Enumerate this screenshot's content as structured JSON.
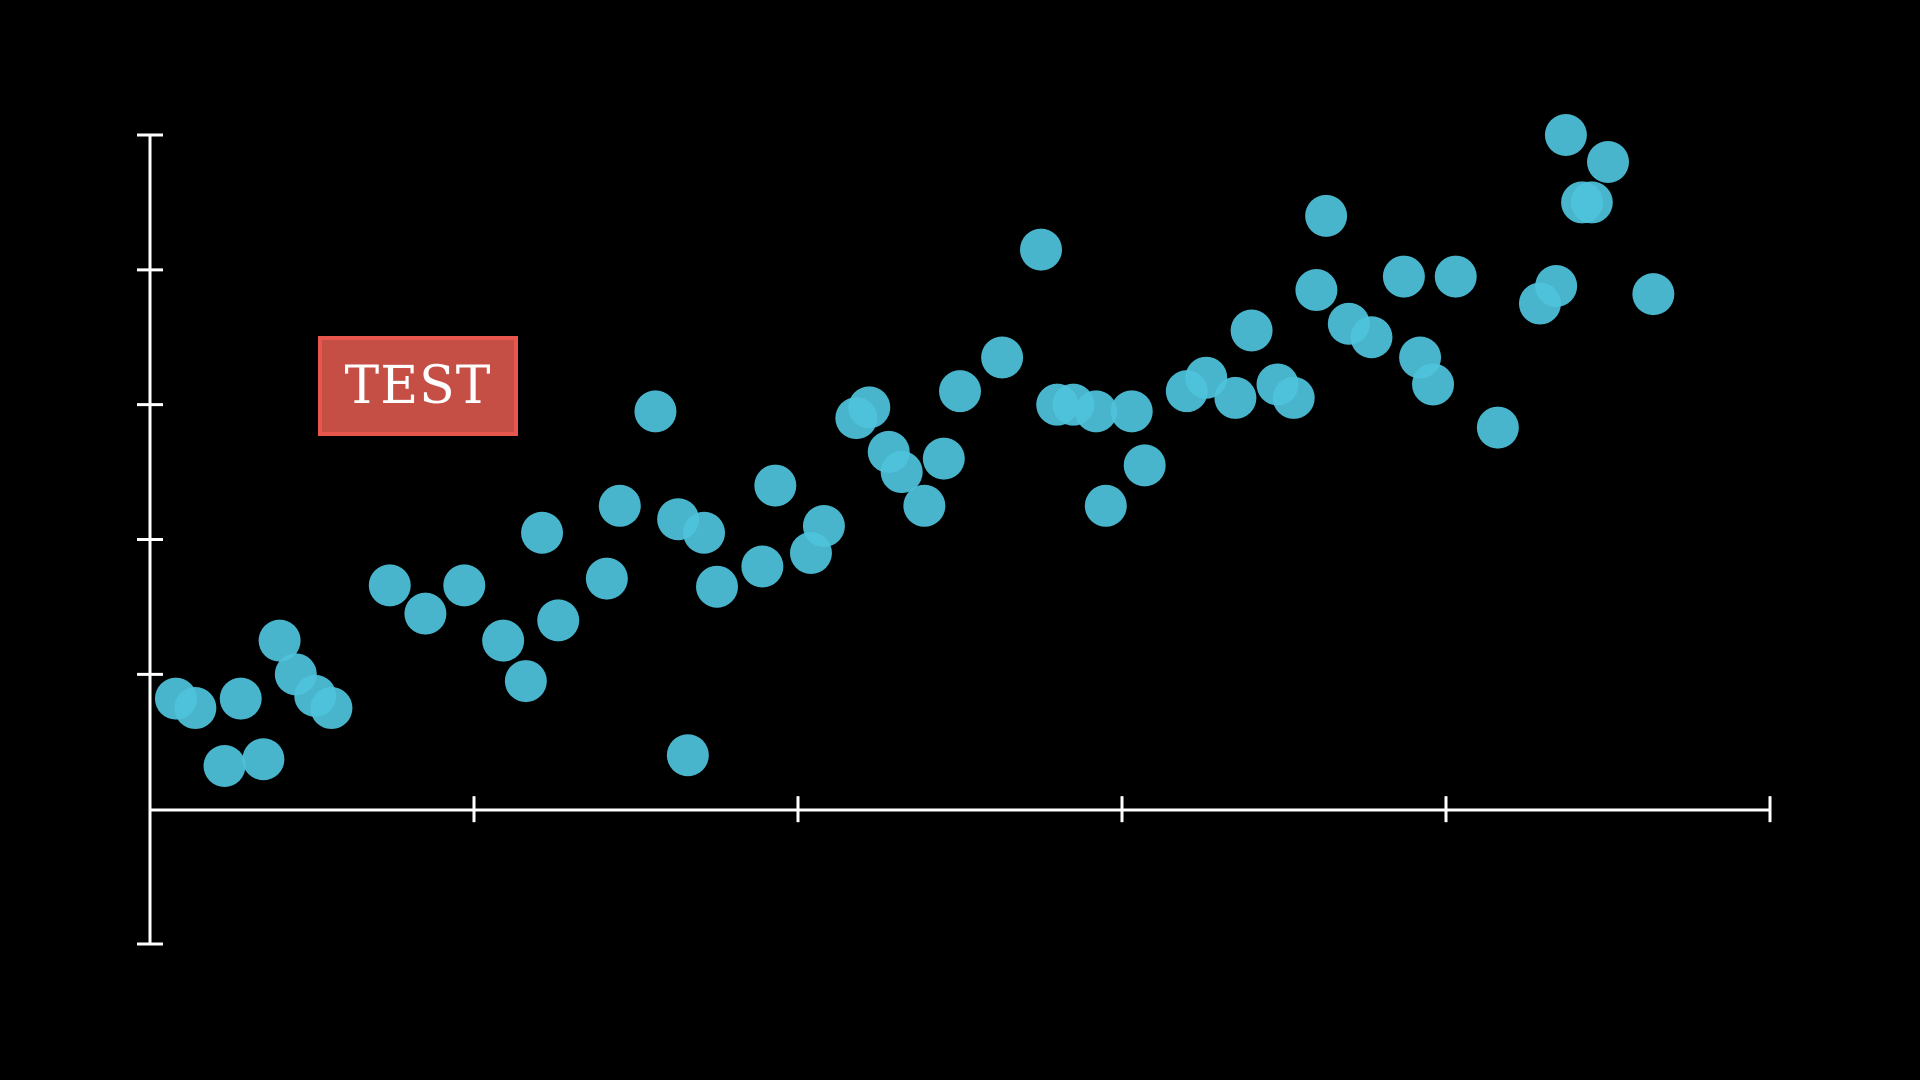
{
  "colors": {
    "background": "#000000",
    "axis": "#ffffff",
    "point": "#4fc3dc",
    "badge_fill": "#c64f45",
    "badge_border": "#e8574d",
    "badge_text": "#ffffff"
  },
  "badge": {
    "label": "TEST"
  },
  "chart_data": {
    "type": "scatter",
    "title": "",
    "xlabel": "",
    "ylabel": "",
    "grid": false,
    "legend": "none",
    "xlim": [
      0,
      5
    ],
    "ylim": [
      -1,
      5
    ],
    "x_ticks": [
      0,
      1,
      2,
      3,
      4,
      5
    ],
    "y_ticks": [
      -1,
      0,
      1,
      2,
      3,
      4,
      5
    ],
    "tick_labels_shown": false,
    "series": [
      {
        "x": [
          0.08,
          0.14,
          0.23,
          0.28,
          0.35,
          0.4,
          0.45,
          0.51,
          0.56,
          0.74,
          0.85,
          0.97,
          1.09,
          1.16,
          1.21,
          1.26,
          1.41,
          1.45,
          1.56,
          1.63,
          1.66,
          1.71,
          1.75,
          1.89,
          1.93,
          2.04,
          2.08,
          2.18,
          2.22,
          2.28,
          2.32,
          2.39,
          2.45,
          2.5,
          2.63,
          2.75,
          2.8,
          2.85,
          2.92,
          2.95,
          3.03,
          3.07,
          3.2,
          3.26,
          3.35,
          3.4,
          3.48,
          3.53,
          3.6,
          3.63,
          3.7,
          3.77,
          3.87,
          3.92,
          3.96,
          4.03,
          4.16,
          4.29,
          4.34,
          4.37,
          4.42,
          4.45,
          4.5,
          4.64
        ],
        "y": [
          0.82,
          0.75,
          0.32,
          0.82,
          0.37,
          1.25,
          1.0,
          0.84,
          0.75,
          1.66,
          1.45,
          1.66,
          1.25,
          0.95,
          2.05,
          1.4,
          1.71,
          2.25,
          2.95,
          2.15,
          0.4,
          2.05,
          1.65,
          1.8,
          2.4,
          1.9,
          2.1,
          2.9,
          2.98,
          2.65,
          2.5,
          2.25,
          2.6,
          3.1,
          3.35,
          4.15,
          3.0,
          3.0,
          2.95,
          2.25,
          2.95,
          2.55,
          3.1,
          3.2,
          3.05,
          3.55,
          3.15,
          3.05,
          3.85,
          4.4,
          3.6,
          3.5,
          3.95,
          3.35,
          3.15,
          3.95,
          2.83,
          3.75,
          3.88,
          5.0,
          4.5,
          4.5,
          4.8,
          3.82
        ]
      }
    ]
  }
}
